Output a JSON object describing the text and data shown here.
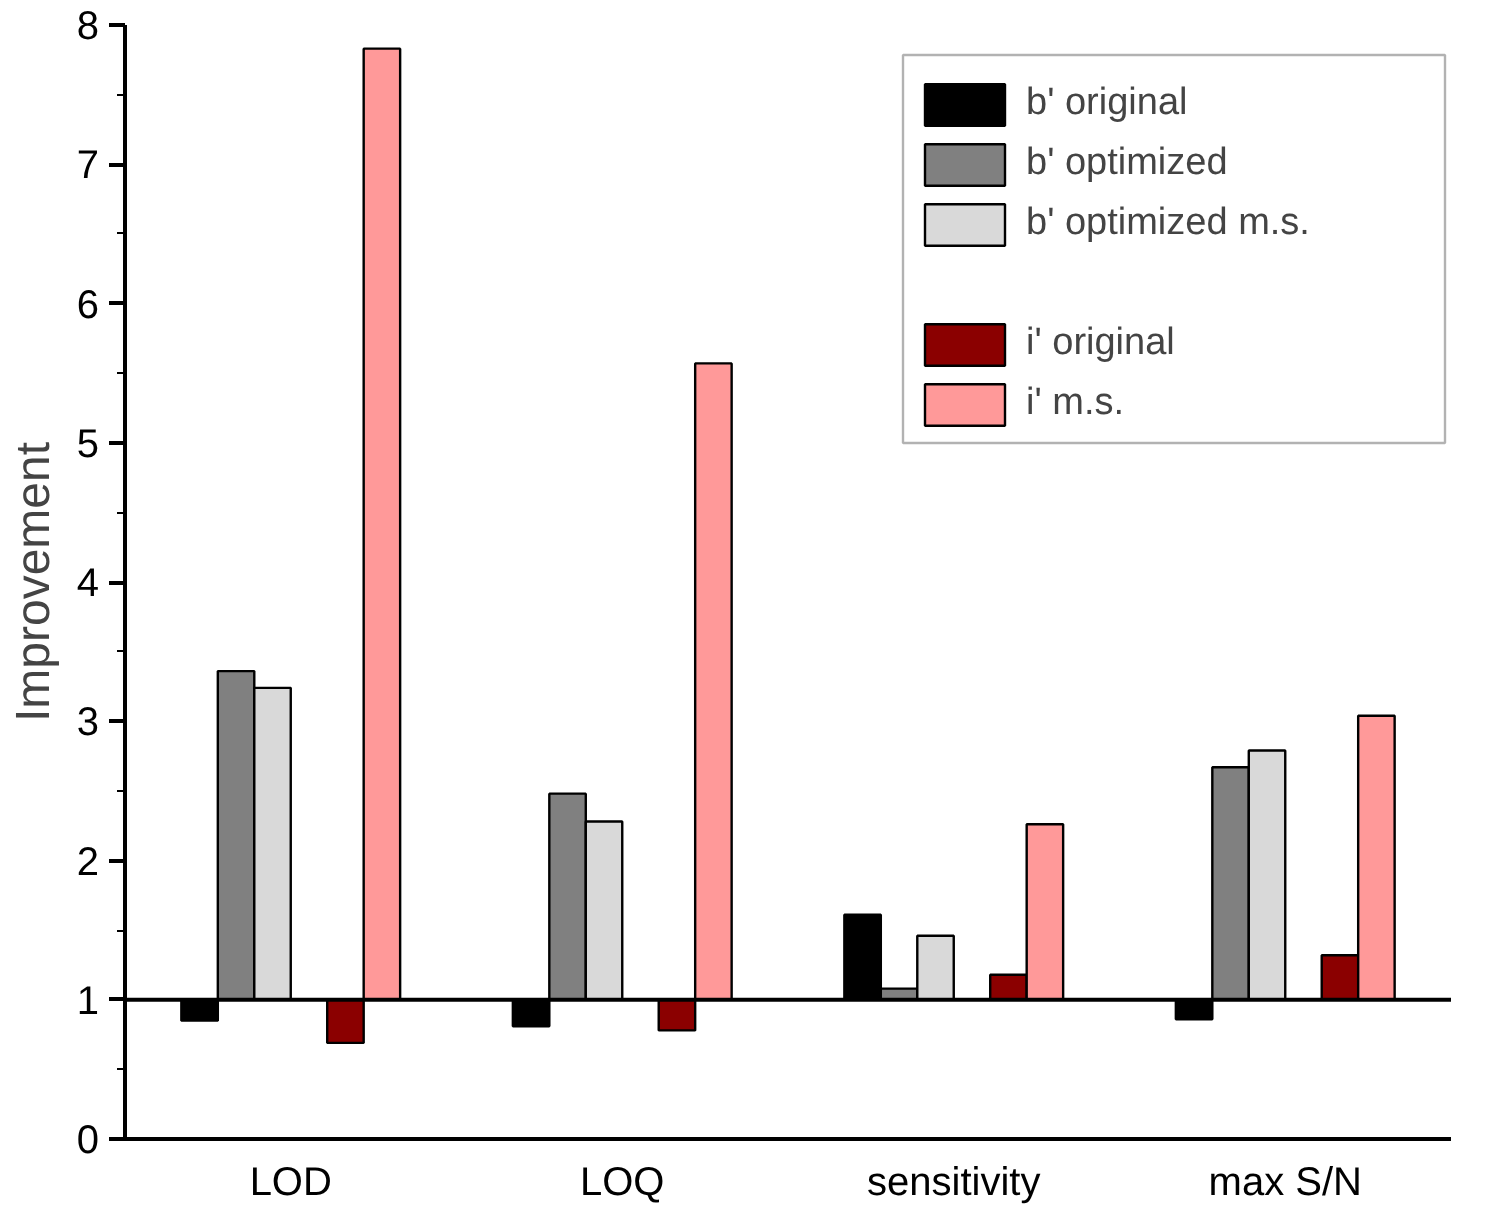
{
  "chart_data": {
    "type": "bar",
    "ylabel": "Improvement",
    "categories": [
      "LOD",
      "LOQ",
      "sensitivity",
      "max S/N"
    ],
    "series": [
      {
        "name": "b' original",
        "color": "#000000",
        "base": [
          1,
          1,
          1,
          1
        ],
        "values": [
          -0.15,
          -0.19,
          0.61,
          -0.14
        ]
      },
      {
        "name": "b' optimized",
        "color": "#808080",
        "base": [
          1,
          1,
          1,
          1
        ],
        "values": [
          2.36,
          1.48,
          0.08,
          1.67
        ]
      },
      {
        "name": "b' optimized m.s.",
        "color": "#d9d9d9",
        "base": [
          1,
          1,
          1,
          1
        ],
        "values": [
          2.24,
          1.28,
          0.46,
          1.79
        ]
      },
      {
        "values": [
          null,
          null,
          null,
          null
        ]
      },
      {
        "name": "i' original",
        "color": "#8b0000",
        "base": [
          1,
          1,
          1,
          1
        ],
        "values": [
          -0.31,
          -0.22,
          0.18,
          0.32
        ]
      },
      {
        "name": "i' m.s.",
        "color": "#ff9999",
        "base": [
          1,
          1,
          1,
          1
        ],
        "values": [
          6.83,
          4.57,
          1.26,
          2.04
        ]
      }
    ],
    "ylim": [
      0,
      8
    ],
    "yticks": [
      0,
      1,
      2,
      3,
      4,
      5,
      6,
      7,
      8
    ],
    "ref_lines": [
      {
        "axis": "y",
        "value": 1
      }
    ],
    "grid": false,
    "legend": "top right"
  }
}
